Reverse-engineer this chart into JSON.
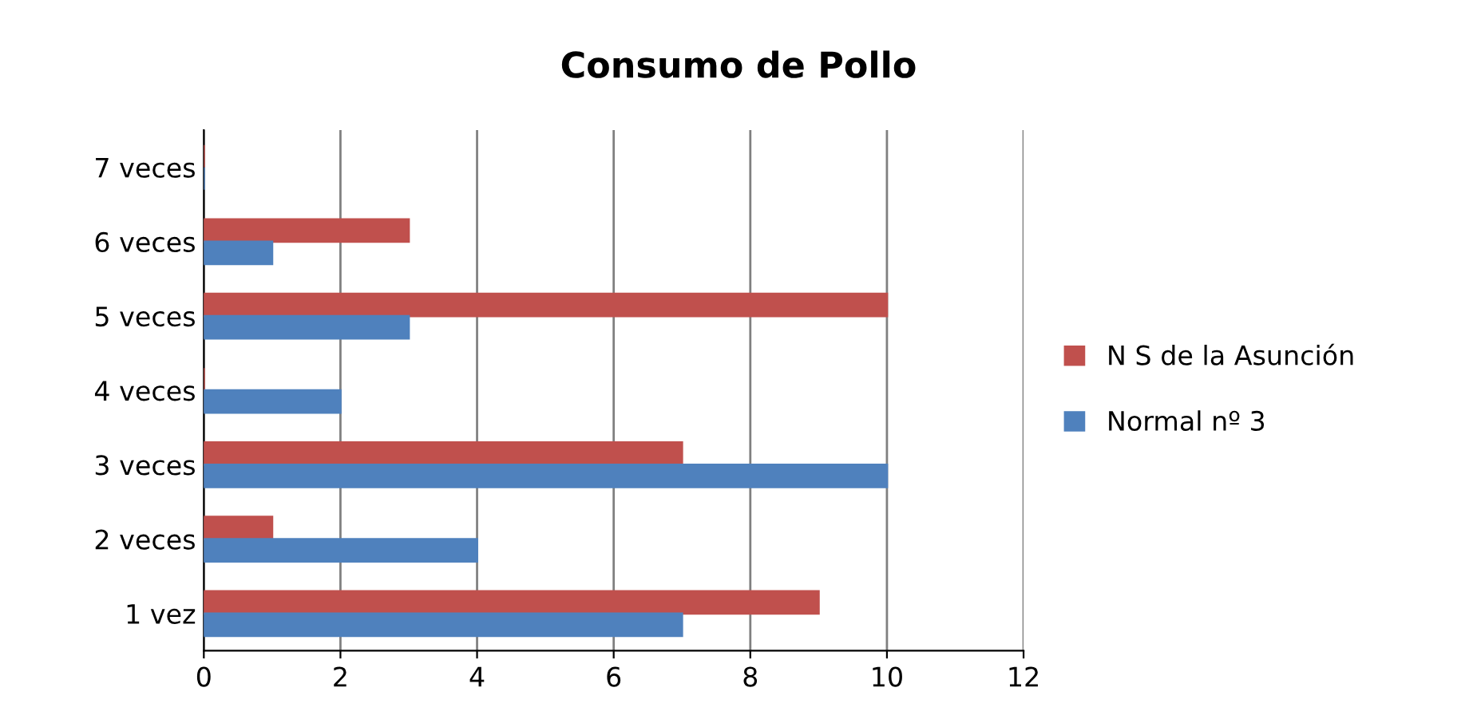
{
  "chart_data": {
    "type": "bar",
    "orientation": "horizontal",
    "title": "Consumo de Pollo",
    "categories": [
      "7 veces",
      "6 veces",
      "5 veces",
      "4 veces",
      "3 veces",
      "2 veces",
      "1 vez"
    ],
    "series": [
      {
        "name": "N S de la Asunción",
        "color": "#c0504d",
        "values": [
          0,
          3,
          10,
          0,
          7,
          1,
          9
        ]
      },
      {
        "name": "Normal nº 3",
        "color": "#4f81bd",
        "values": [
          0,
          1,
          3,
          2,
          10,
          4,
          7
        ]
      }
    ],
    "xlim": [
      0,
      12
    ],
    "xticks": [
      0,
      2,
      4,
      6,
      8,
      10,
      12
    ],
    "grid": "x",
    "legend": "right"
  }
}
